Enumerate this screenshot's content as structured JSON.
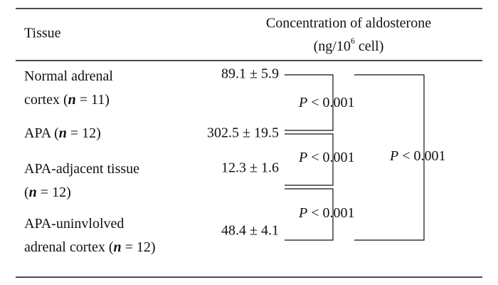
{
  "header": {
    "tissue": "Tissue",
    "concentration": "Concentration of aldosterone",
    "unit_base": "(ng/10",
    "unit_exponent": "6",
    "unit_rest": " cell)"
  },
  "rows": [
    {
      "tissue": [
        "Normal adrenal",
        "cortex (n = 11)"
      ],
      "value": "89.1 ± 5.9"
    },
    {
      "tissue": [
        "APA (n = 12)"
      ],
      "value": "302.5 ± 19.5"
    },
    {
      "tissue": [
        "APA-adjacent tissue",
        "(n = 12)"
      ],
      "value": "12.3 ± 1.6"
    },
    {
      "tissue": [
        "APA-uninvlolved",
        "adrenal cortex (n = 12)"
      ],
      "value": "48.4 ± 4.1"
    }
  ],
  "comparisons": [
    "P < 0.001",
    "P < 0.001",
    "P < 0.001",
    "P < 0.001"
  ]
}
